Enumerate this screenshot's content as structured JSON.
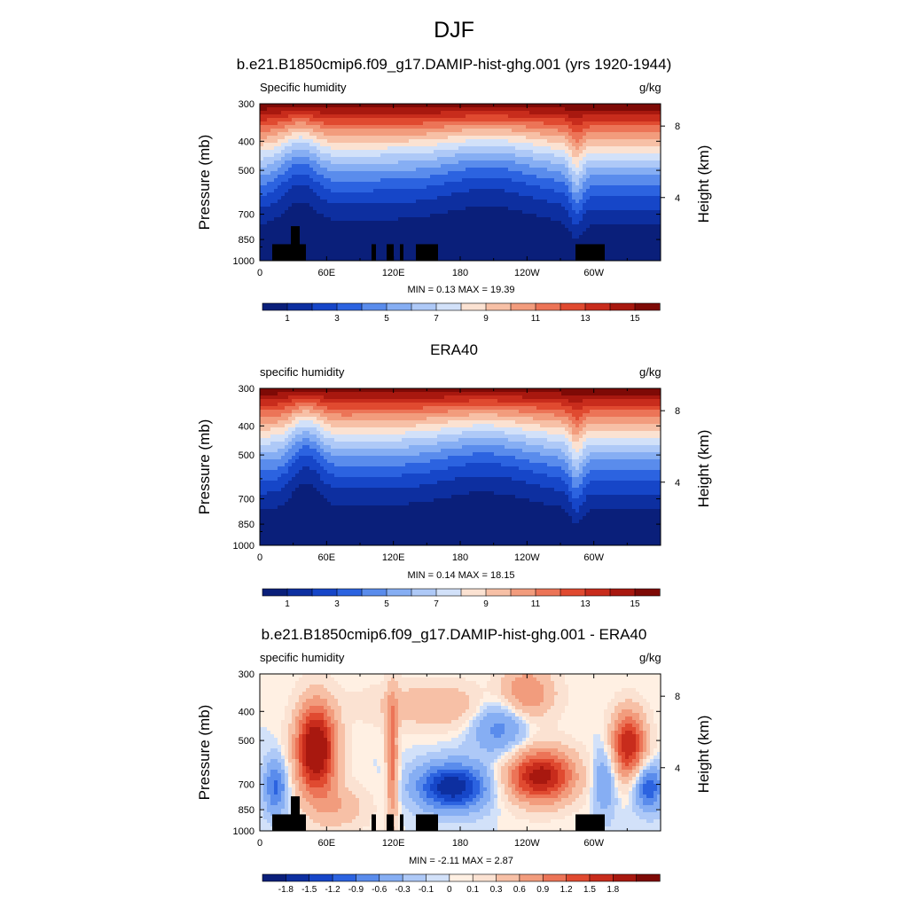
{
  "figure": {
    "title": "DJF"
  },
  "chart_data": [
    {
      "type": "heatmap",
      "title": "b.e21.B1850cmip6.f09_g17.DAMIP-hist-ghg.001 (yrs 1920-1944)",
      "left_label": "Specific humidity",
      "right_label": "g/kg",
      "ylabel": "Pressure (mb)",
      "y2label": "Height (km)",
      "y_ticks": [
        "300",
        "400",
        "500",
        "700",
        "850",
        "1000"
      ],
      "y2_ticks": [
        "8",
        "4"
      ],
      "x_ticks": [
        "0",
        "60E",
        "120E",
        "180",
        "120W",
        "60W"
      ],
      "stats": "MIN =   0.13  MAX =  19.39",
      "colorbar_labels": [
        "1",
        "3",
        "5",
        "7",
        "9",
        "11",
        "13",
        "15"
      ],
      "min": 0.13,
      "max": 19.39
    },
    {
      "type": "heatmap",
      "title": "ERA40",
      "left_label": "specific humidity",
      "right_label": "g/kg",
      "ylabel": "Pressure (mb)",
      "y2label": "Height (km)",
      "y_ticks": [
        "300",
        "400",
        "500",
        "700",
        "850",
        "1000"
      ],
      "y2_ticks": [
        "8",
        "4"
      ],
      "x_ticks": [
        "0",
        "60E",
        "120E",
        "180",
        "120W",
        "60W"
      ],
      "stats": "MIN =   0.14  MAX =  18.15",
      "colorbar_labels": [
        "1",
        "3",
        "5",
        "7",
        "9",
        "11",
        "13",
        "15"
      ],
      "min": 0.14,
      "max": 18.15
    },
    {
      "type": "heatmap",
      "title": "b.e21.B1850cmip6.f09_g17.DAMIP-hist-ghg.001 - ERA40",
      "left_label": "specific humidity",
      "right_label": "g/kg",
      "ylabel": "Pressure (mb)",
      "y2label": "Height (km)",
      "y_ticks": [
        "300",
        "400",
        "500",
        "700",
        "850",
        "1000"
      ],
      "y2_ticks": [
        "8",
        "4"
      ],
      "x_ticks": [
        "0",
        "60E",
        "120E",
        "180",
        "120W",
        "60W"
      ],
      "stats": "MIN =  -2.11  MAX =   2.87",
      "colorbar_labels": [
        "-1.8",
        "-1.5",
        "-1.2",
        "-0.9",
        "-0.6",
        "-0.3",
        "-0.1",
        "0",
        "0.1",
        "0.3",
        "0.6",
        "0.9",
        "1.2",
        "1.5",
        "1.8"
      ],
      "min": -2.11,
      "max": 2.87
    }
  ]
}
